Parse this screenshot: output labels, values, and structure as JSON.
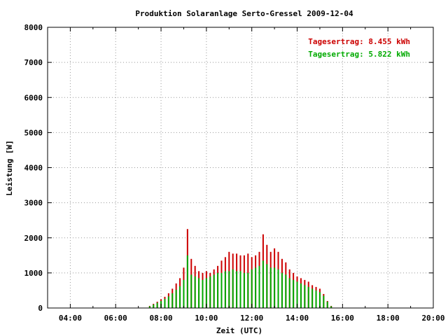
{
  "chart_data": {
    "type": "bar",
    "title": "Produktion Solaranlage Serto-Gressel 2009-12-04",
    "xlabel": "Zeit (UTC)",
    "ylabel": "Leistung [W]",
    "ylim": [
      0,
      8000
    ],
    "xlim": [
      "03:00",
      "20:00"
    ],
    "yticks": [
      "0",
      "1000",
      "2000",
      "3000",
      "4000",
      "5000",
      "6000",
      "7000",
      "8000"
    ],
    "xticks": [
      "04:00",
      "06:00",
      "08:00",
      "10:00",
      "12:00",
      "14:00",
      "16:00",
      "18:00",
      "20:00"
    ],
    "grid": true,
    "legend_position": "top-right",
    "annotations": [
      {
        "text": "Tagesertrag: 8.455 kWh",
        "color": "#cc0000"
      },
      {
        "text": "Tagesertrag: 5.822 kWh",
        "color": "#00aa00"
      }
    ],
    "colors": {
      "series1": "#cc0000",
      "series2": "#00aa00"
    },
    "x": [
      "07:30",
      "07:40",
      "07:50",
      "08:00",
      "08:10",
      "08:20",
      "08:30",
      "08:40",
      "08:50",
      "09:00",
      "09:10",
      "09:20",
      "09:30",
      "09:40",
      "09:50",
      "10:00",
      "10:10",
      "10:20",
      "10:30",
      "10:40",
      "10:50",
      "11:00",
      "11:10",
      "11:20",
      "11:30",
      "11:40",
      "11:50",
      "12:00",
      "12:10",
      "12:20",
      "12:30",
      "12:40",
      "12:50",
      "13:00",
      "13:10",
      "13:20",
      "13:30",
      "13:40",
      "13:50",
      "14:00",
      "14:10",
      "14:20",
      "14:30",
      "14:40",
      "14:50",
      "15:00",
      "15:10",
      "15:20",
      "15:30"
    ],
    "series": [
      {
        "values": [
          60,
          120,
          180,
          250,
          320,
          420,
          550,
          700,
          850,
          1150,
          2250,
          1400,
          1200,
          1050,
          1000,
          1050,
          1000,
          1100,
          1200,
          1350,
          1450,
          1600,
          1550,
          1550,
          1500,
          1500,
          1550,
          1450,
          1500,
          1600,
          2100,
          1800,
          1600,
          1700,
          1600,
          1400,
          1300,
          1100,
          1000,
          900,
          850,
          800,
          750,
          650,
          600,
          550,
          400,
          200,
          60
        ]
      },
      {
        "values": [
          50,
          100,
          150,
          200,
          260,
          330,
          420,
          520,
          620,
          800,
          1500,
          950,
          900,
          850,
          800,
          850,
          900,
          950,
          1000,
          1000,
          1050,
          1050,
          1100,
          1050,
          1050,
          1000,
          1000,
          1100,
          1150,
          1200,
          1350,
          1250,
          1150,
          1150,
          1100,
          1000,
          950,
          850,
          800,
          750,
          700,
          650,
          600,
          550,
          500,
          450,
          350,
          180,
          50
        ]
      }
    ]
  }
}
